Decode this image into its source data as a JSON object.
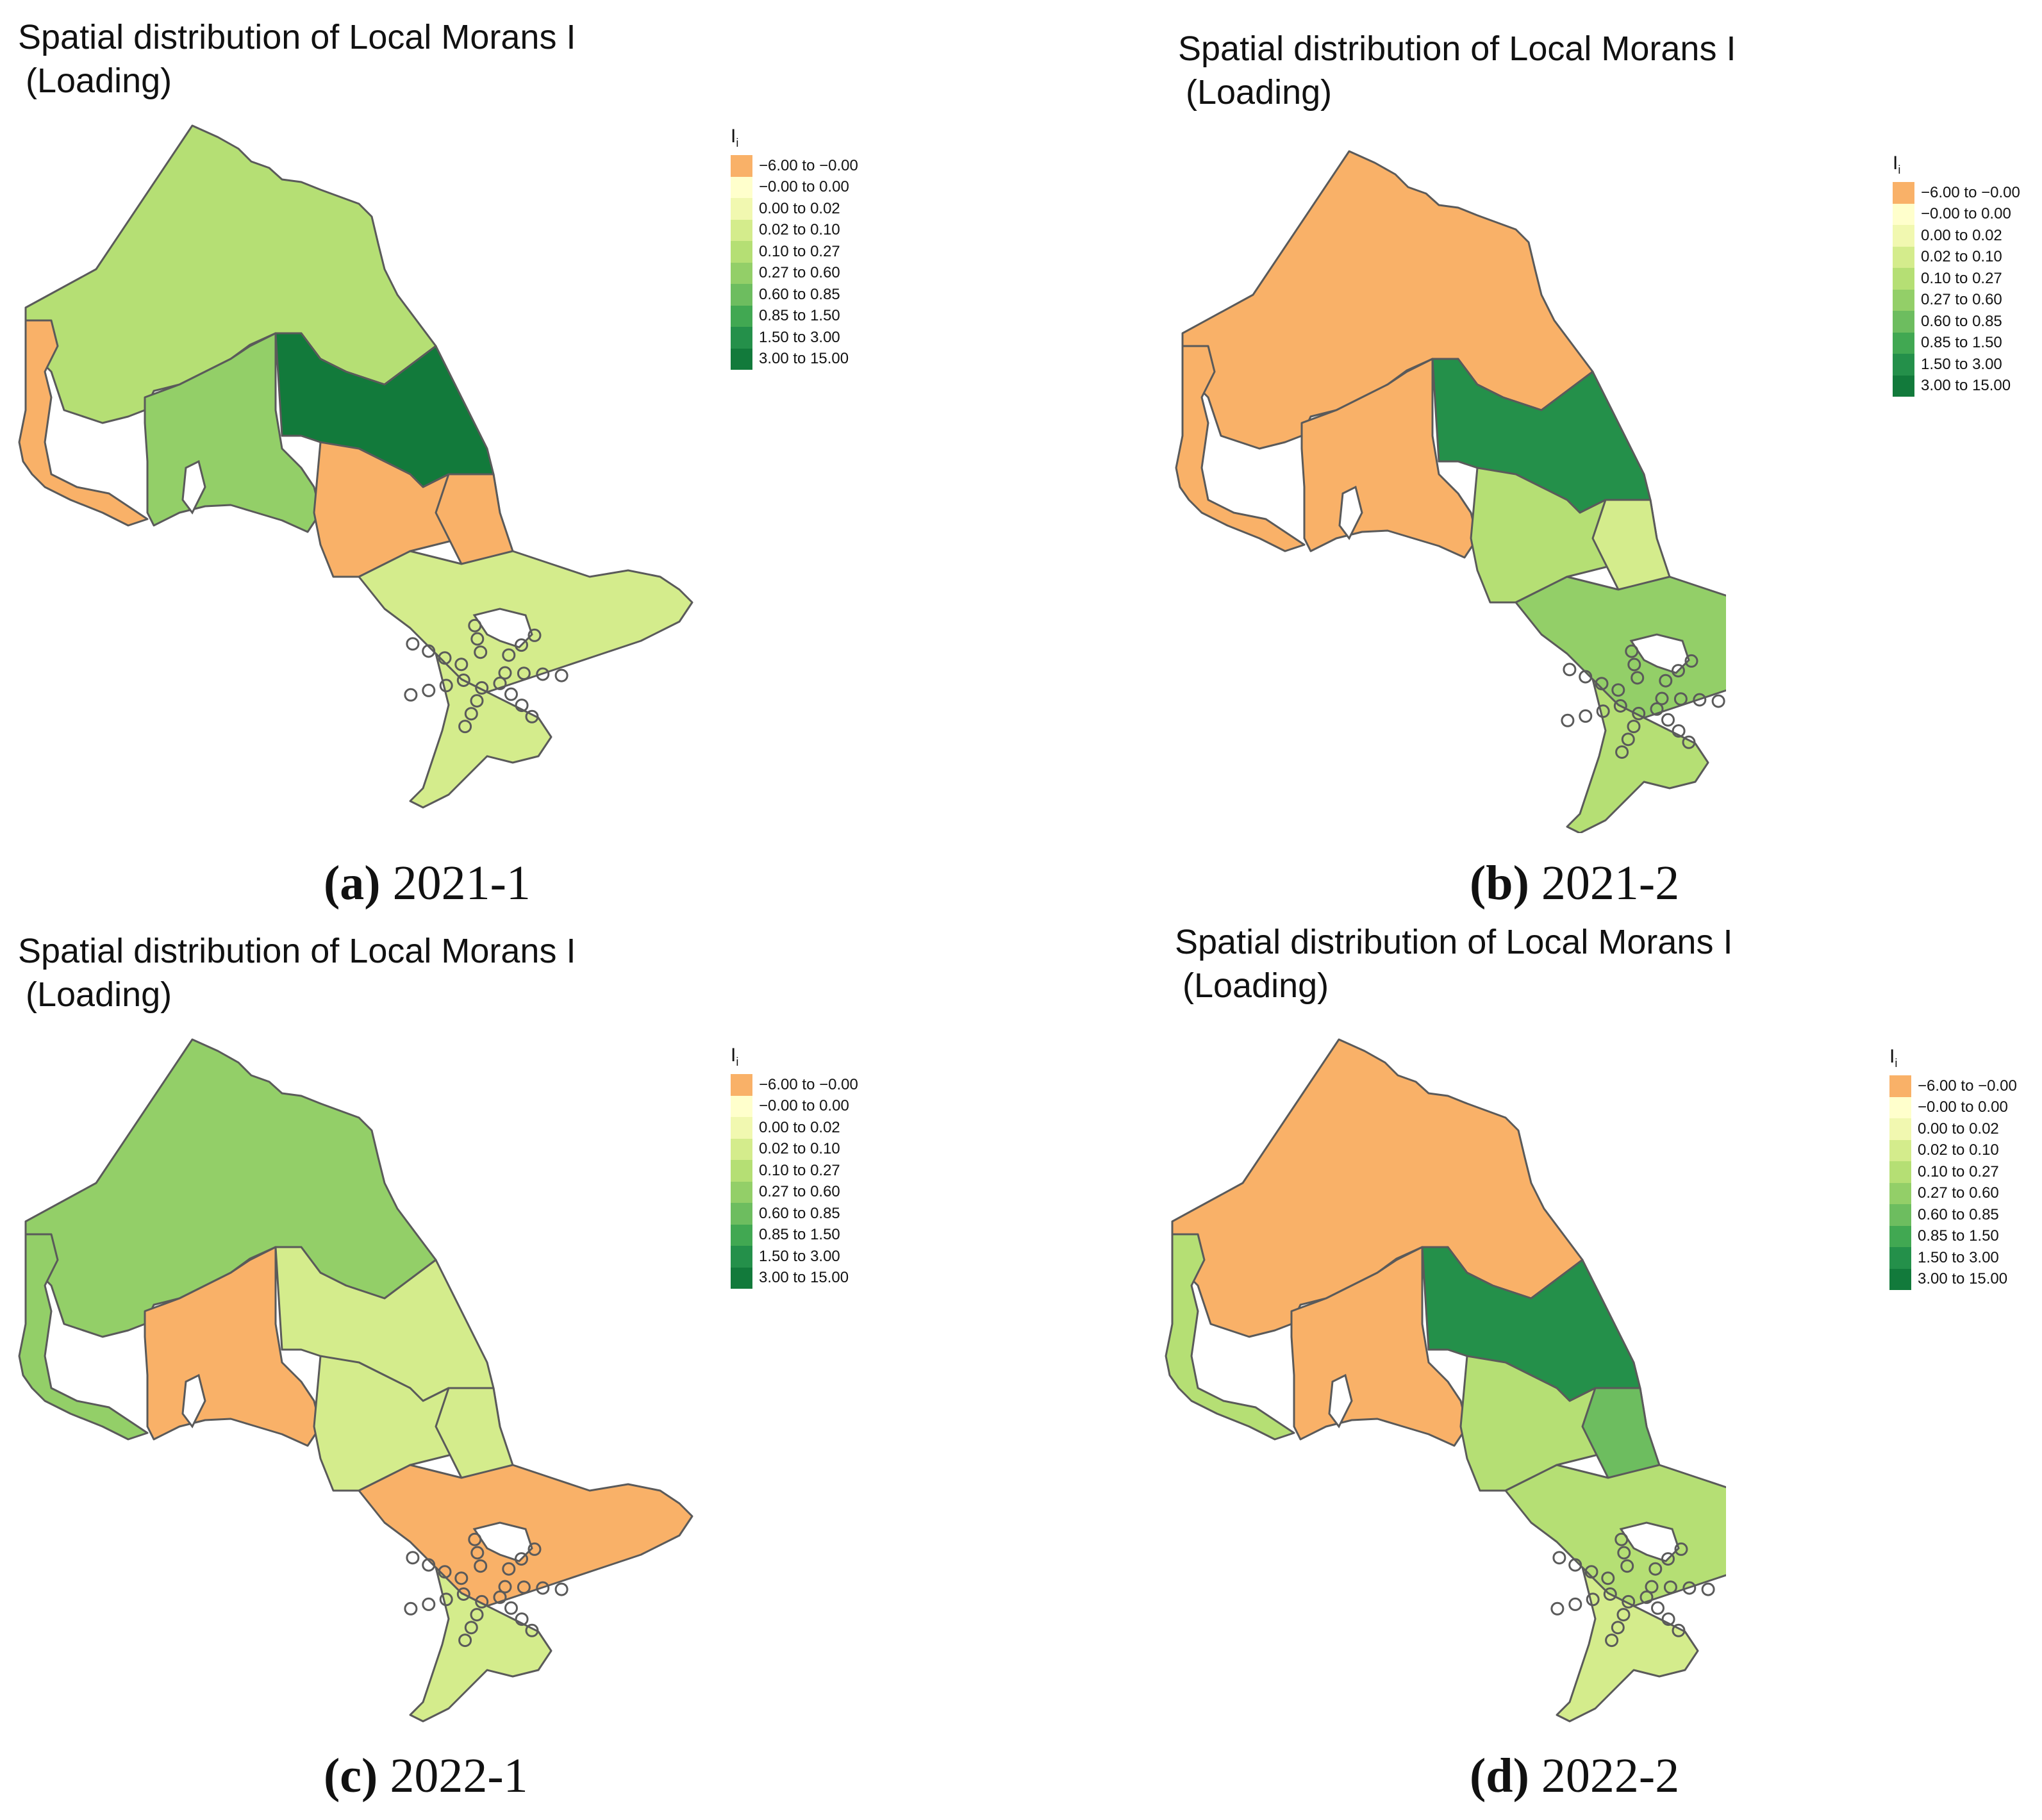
{
  "panels": [
    {
      "title_line1": "Spatial distribution of Local Morans I",
      "title_line2": "(Loading)",
      "caption_letter": "(a)",
      "caption_period": "2021-1",
      "regions": {
        "west": "c0",
        "northwest": "c4",
        "south_west": "c5",
        "northeast": "c9",
        "east_block": "c0",
        "central": "c0",
        "southeast": "c3",
        "south_lower": "c3"
      }
    },
    {
      "title_line1": "Spatial distribution of Local Morans I",
      "title_line2": "(Loading)",
      "caption_letter": "(b)",
      "caption_period": "2021-2",
      "regions": {
        "west": "c0",
        "northwest": "c0",
        "south_west": "c0",
        "northeast": "c8",
        "east_block": "c3",
        "central": "c4",
        "southeast": "c5",
        "south_lower": "c4"
      }
    },
    {
      "title_line1": "Spatial distribution of Local Morans I",
      "title_line2": "(Loading)",
      "caption_letter": "(c)",
      "caption_period": "2022-1",
      "regions": {
        "west": "c5",
        "northwest": "c5",
        "south_west": "c0",
        "northeast": "c3",
        "east_block": "c3",
        "central": "c3",
        "southeast": "c0",
        "south_lower": "c3"
      }
    },
    {
      "title_line1": "Spatial distribution of Local Morans I",
      "title_line2": "(Loading)",
      "caption_letter": "(d)",
      "caption_period": "2022-2",
      "regions": {
        "west": "c4",
        "northwest": "c0",
        "south_west": "c0",
        "northeast": "c8",
        "east_block": "c6",
        "central": "c4",
        "southeast": "c4",
        "south_lower": "c3"
      }
    }
  ],
  "legend": {
    "title": "I",
    "title_sub": "i",
    "classes": [
      {
        "key": "c0",
        "label": "−6.00 to −0.00",
        "color": "#f9b168"
      },
      {
        "key": "c1",
        "label": "−0.00 to 0.00",
        "color": "#ffffcc"
      },
      {
        "key": "c2",
        "label": "0.00 to 0.02",
        "color": "#f1f8b0"
      },
      {
        "key": "c3",
        "label": "0.02 to 0.10",
        "color": "#d4ec8c"
      },
      {
        "key": "c4",
        "label": "0.10 to 0.27",
        "color": "#b5df74"
      },
      {
        "key": "c5",
        "label": "0.27 to 0.60",
        "color": "#93cf68"
      },
      {
        "key": "c6",
        "label": "0.60 to 0.85",
        "color": "#6dbd5f"
      },
      {
        "key": "c7",
        "label": "0.85 to 1.50",
        "color": "#41a852"
      },
      {
        "key": "c8",
        "label": "1.50 to 3.00",
        "color": "#24904a"
      },
      {
        "key": "c9",
        "label": "3.00 to 15.00",
        "color": "#127a3b"
      }
    ]
  },
  "border_color": "#5a5a5a"
}
